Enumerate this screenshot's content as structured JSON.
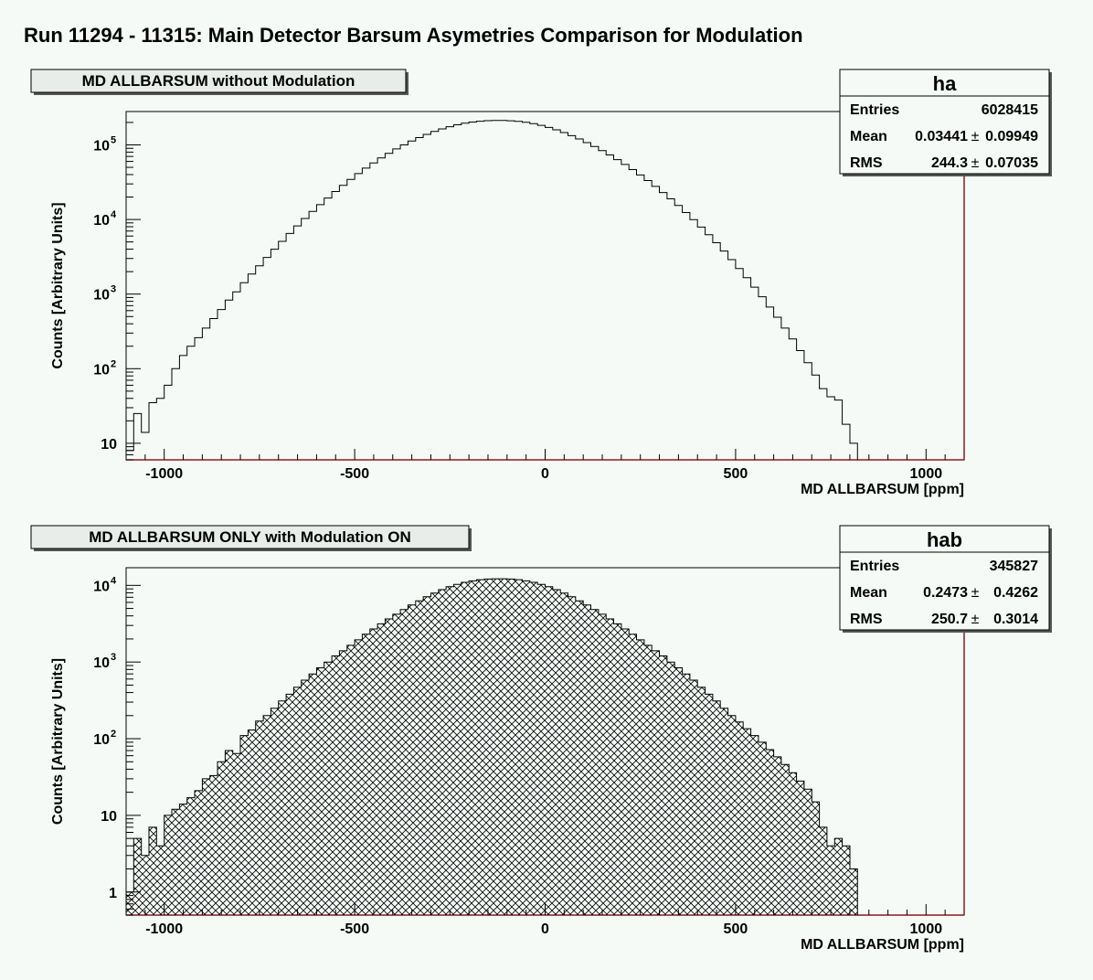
{
  "page_title": "Run 11294 - 11315: Main Detector Barsum Asymetries Comparison for Modulation",
  "colors": {
    "background": "#f5faf7",
    "frame_right_bottom": "#8b1a1a",
    "line": "#000000",
    "hatch_fill": "#000000"
  },
  "chart_data": [
    {
      "type": "bar",
      "style": "step-histogram",
      "title": "MD ALLBARSUM without Modulation",
      "xlabel": "MD ALLBARSUM [ppm]",
      "ylabel": "Counts [Arbitrary Units]",
      "log_y": true,
      "xlim": [
        -1100,
        1100
      ],
      "ylim": [
        6,
        280000
      ],
      "xticks": [
        "-1000",
        "-500",
        "0",
        "500",
        "1000"
      ],
      "yticks": [
        {
          "label": "10",
          "sup": ""
        },
        {
          "label": "10",
          "sup": "2"
        },
        {
          "label": "10",
          "sup": "3"
        },
        {
          "label": "10",
          "sup": "4"
        },
        {
          "label": "10",
          "sup": "5"
        }
      ],
      "filled": false,
      "bin_start": -1100,
      "bin_width": 20,
      "values": [
        8,
        25,
        14,
        35,
        40,
        60,
        100,
        150,
        200,
        260,
        350,
        470,
        620,
        830,
        1070,
        1420,
        1860,
        2400,
        3100,
        4000,
        5100,
        6500,
        8200,
        10300,
        12800,
        15800,
        19400,
        23700,
        28700,
        34500,
        41200,
        48800,
        57300,
        66800,
        77100,
        88200,
        100000,
        112400,
        125300,
        138300,
        151200,
        163700,
        175400,
        186000,
        195100,
        202500,
        207900,
        211200,
        212100,
        212100,
        210700,
        206900,
        200800,
        192700,
        182800,
        171500,
        159200,
        146300,
        133100,
        120100,
        107400,
        95300,
        83900,
        73300,
        63500,
        54700,
        46700,
        39500,
        33300,
        27800,
        23000,
        18900,
        15400,
        12400,
        9960,
        7920,
        6240,
        4880,
        3780,
        2900,
        2200,
        1660,
        1240,
        920,
        670,
        490,
        350,
        250,
        175,
        120,
        82,
        54,
        42,
        38,
        18,
        10
      ],
      "stats": {
        "name": "ha",
        "rows": [
          {
            "label": "Entries",
            "value": "6028415",
            "error": ""
          },
          {
            "label": "Mean",
            "value": "0.03441",
            "error": "0.09949"
          },
          {
            "label": "RMS",
            "value": "244.3",
            "error": "0.07035"
          }
        ]
      }
    },
    {
      "type": "bar",
      "style": "step-histogram-hatched",
      "title": "MD ALLBARSUM ONLY with Modulation ON",
      "xlabel": "MD ALLBARSUM [ppm]",
      "ylabel": "Counts [Arbitrary Units]",
      "log_y": true,
      "xlim": [
        -1100,
        1100
      ],
      "ylim": [
        0.5,
        17000
      ],
      "xticks": [
        "-1000",
        "-500",
        "0",
        "500",
        "1000"
      ],
      "yticks": [
        {
          "label": "1",
          "sup": ""
        },
        {
          "label": "10",
          "sup": ""
        },
        {
          "label": "10",
          "sup": "2"
        },
        {
          "label": "10",
          "sup": "3"
        },
        {
          "label": "10",
          "sup": "4"
        }
      ],
      "filled": true,
      "bin_start": -1100,
      "bin_width": 20,
      "values": [
        1,
        5,
        3,
        7,
        4,
        10,
        12,
        14,
        17,
        21,
        30,
        33,
        50,
        70,
        64,
        110,
        130,
        170,
        200,
        250,
        310,
        380,
        470,
        580,
        700,
        840,
        1000,
        1200,
        1400,
        1650,
        1950,
        2300,
        2700,
        3150,
        3650,
        4200,
        4850,
        5550,
        6300,
        7100,
        7950,
        8800,
        9600,
        10300,
        10950,
        11450,
        11850,
        12100,
        12200,
        12200,
        12100,
        11850,
        11450,
        10950,
        10300,
        9600,
        8800,
        7950,
        7100,
        6300,
        5550,
        4850,
        4200,
        3650,
        3150,
        2700,
        2300,
        1950,
        1650,
        1400,
        1200,
        1000,
        840,
        700,
        580,
        470,
        380,
        310,
        250,
        200,
        165,
        135,
        110,
        90,
        72,
        58,
        46,
        36,
        28,
        22,
        15,
        7,
        4,
        5,
        4,
        2
      ],
      "stats": {
        "name": "hab",
        "rows": [
          {
            "label": "Entries",
            "value": "345827",
            "error": ""
          },
          {
            "label": "Mean",
            "value": "0.2473",
            "error": "0.4262"
          },
          {
            "label": "RMS",
            "value": "250.7",
            "error": "0.3014"
          }
        ]
      }
    }
  ]
}
